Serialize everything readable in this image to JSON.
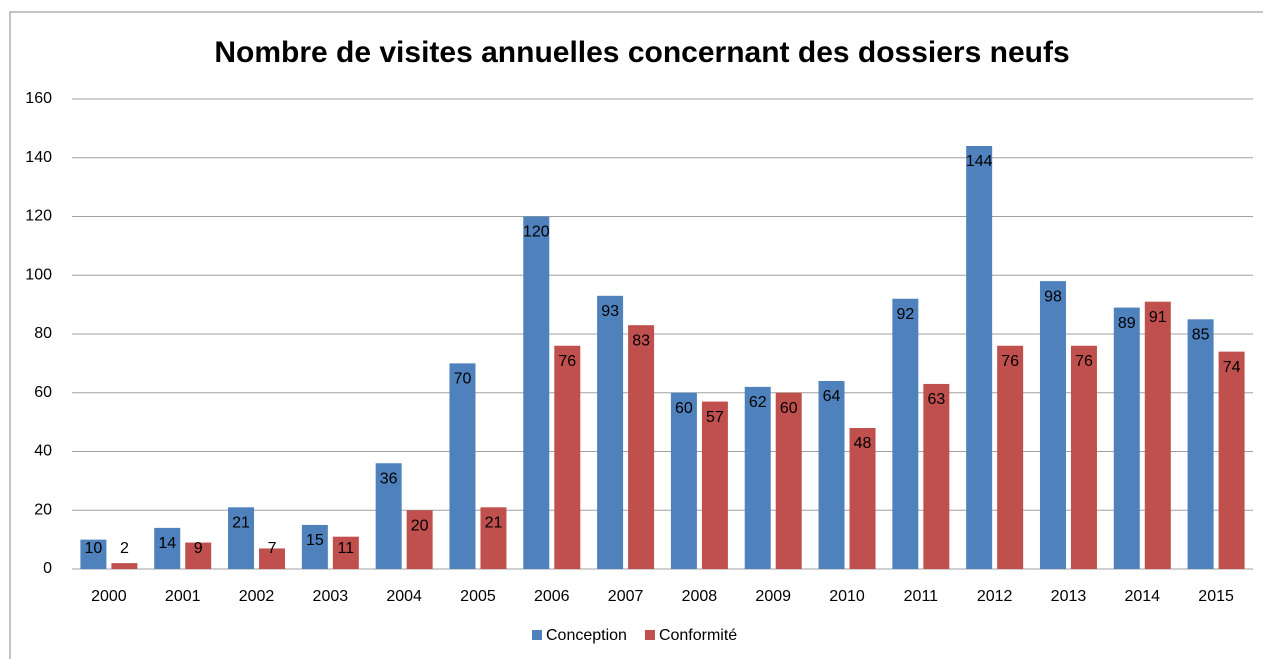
{
  "chart_data": {
    "type": "bar",
    "title": "Nombre de visites annuelles concernant des dossiers neufs",
    "categories": [
      "2000",
      "2001",
      "2002",
      "2003",
      "2004",
      "2005",
      "2006",
      "2007",
      "2008",
      "2009",
      "2010",
      "2011",
      "2012",
      "2013",
      "2014",
      "2015"
    ],
    "series": [
      {
        "name": "Conception",
        "color": "#4f81bd",
        "values": [
          10,
          14,
          21,
          15,
          36,
          70,
          120,
          93,
          60,
          62,
          64,
          92,
          144,
          98,
          89,
          85
        ]
      },
      {
        "name": "Conformité",
        "color": "#c0504d",
        "values": [
          2,
          9,
          7,
          11,
          20,
          21,
          76,
          83,
          57,
          60,
          48,
          63,
          76,
          76,
          91,
          74
        ]
      }
    ],
    "ylim": [
      0,
      160
    ],
    "yticks": [
      0,
      20,
      40,
      60,
      80,
      100,
      120,
      140,
      160
    ],
    "grid": true,
    "legend": "bottom"
  }
}
